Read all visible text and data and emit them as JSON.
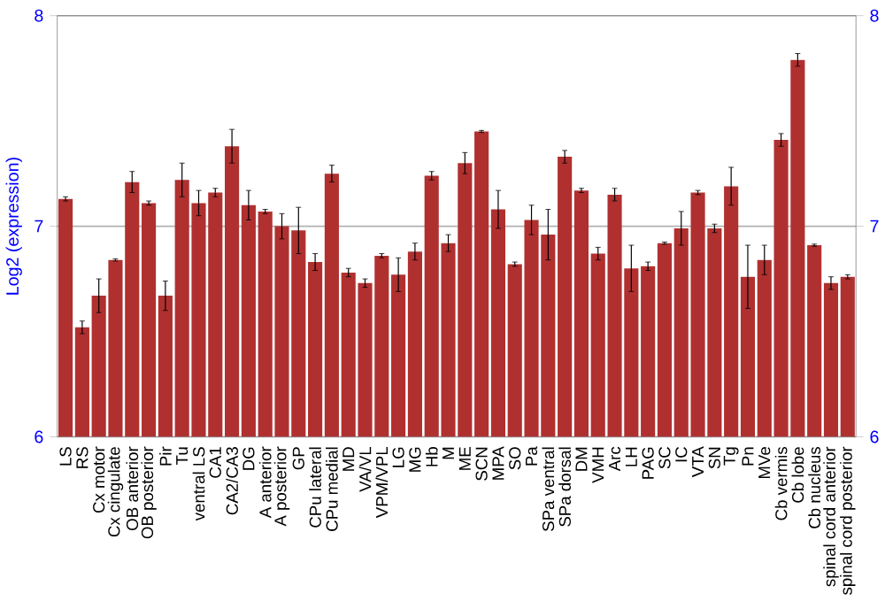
{
  "chart_data": {
    "type": "bar",
    "ylabel": "Log2 (expression)",
    "categories": [
      "LS",
      "RS",
      "Cx motor",
      "Cx cingulate",
      "OB anterior",
      "OB posterior",
      "Pir",
      "Tu",
      "ventral LS",
      "CA1",
      "CA2/CA3",
      "DG",
      "A anterior",
      "A posterior",
      "GP",
      "CPu lateral",
      "CPu medial",
      "MD",
      "VA/VL",
      "VPM/VPL",
      "LG",
      "MG",
      "Hb",
      "M",
      "ME",
      "SCN",
      "MPA",
      "SO",
      "Pa",
      "SPa ventral",
      "SPa dorsal",
      "DM",
      "VMH",
      "Arc",
      "LH",
      "PAG",
      "SC",
      "IC",
      "VTA",
      "SN",
      "Tg",
      "Pn",
      "MVe",
      "Cb vermis",
      "Cb lobe",
      "Cb nucleus",
      "spinal cord anterior",
      "spinal cord posterior"
    ],
    "values": [
      7.13,
      6.52,
      6.67,
      6.84,
      7.21,
      7.11,
      6.67,
      7.22,
      7.11,
      7.16,
      7.38,
      7.1,
      7.07,
      7.0,
      6.98,
      6.83,
      7.25,
      6.78,
      6.73,
      6.86,
      6.77,
      6.88,
      7.24,
      6.92,
      7.3,
      7.45,
      7.08,
      6.82,
      7.03,
      6.96,
      7.33,
      7.17,
      6.87,
      7.15,
      6.8,
      6.81,
      6.92,
      6.99,
      7.16,
      6.99,
      7.19,
      6.76,
      6.84,
      7.41,
      7.79,
      6.91,
      6.73,
      6.76
    ],
    "errors": [
      0.01,
      0.03,
      0.08,
      0.005,
      0.05,
      0.01,
      0.07,
      0.08,
      0.06,
      0.02,
      0.08,
      0.07,
      0.01,
      0.06,
      0.11,
      0.04,
      0.04,
      0.02,
      0.02,
      0.01,
      0.08,
      0.04,
      0.02,
      0.04,
      0.05,
      0.005,
      0.09,
      0.01,
      0.07,
      0.12,
      0.03,
      0.01,
      0.03,
      0.03,
      0.11,
      0.02,
      0.005,
      0.08,
      0.01,
      0.02,
      0.09,
      0.15,
      0.07,
      0.03,
      0.03,
      0.005,
      0.03,
      0.01
    ],
    "color": "#b03030",
    "ylim": [
      6,
      8
    ],
    "yticks": [
      6,
      7,
      8
    ],
    "y2lim": [
      6,
      8
    ],
    "y2ticks": [
      6,
      7,
      8
    ],
    "grid": "y"
  }
}
